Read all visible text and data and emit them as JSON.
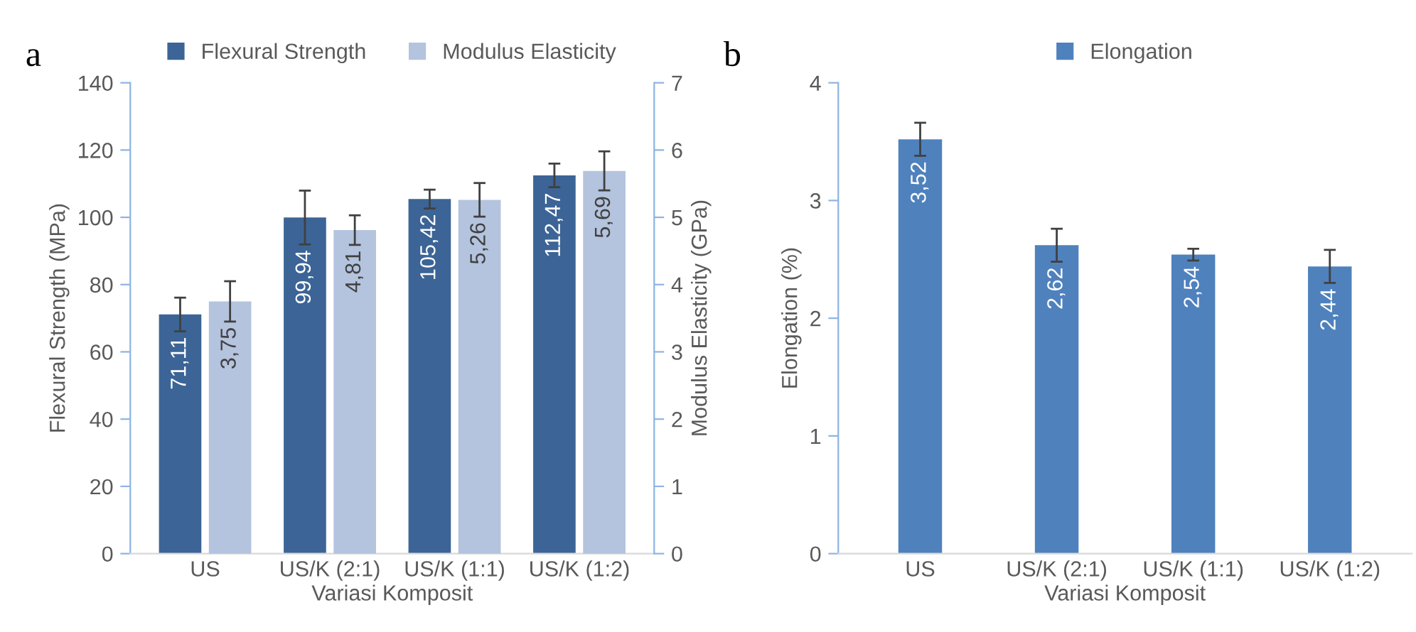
{
  "chart_data": [
    {
      "type": "bar",
      "title": "a",
      "xlabel": "Variasi Komposit",
      "ylabel": "Flexural Strength (MPa)",
      "y2label": "Modulus Elasticity (GPa)",
      "categories": [
        "US",
        "US/K (2:1)",
        "US/K (1:1)",
        "US/K (1:2)"
      ],
      "series": [
        {
          "name": "Flexural Strength",
          "color": "#3c6496",
          "values": [
            71.11,
            99.94,
            105.42,
            112.47
          ],
          "errors": [
            5,
            8,
            2.8,
            3.5
          ],
          "value_labels": [
            "71,11",
            "99,94",
            "105,42",
            "112,47"
          ]
        },
        {
          "name": "Modulus Elasticity",
          "color": "#b4c3de",
          "axis": "y2",
          "values": [
            3.75,
            4.81,
            5.26,
            5.69
          ],
          "errors": [
            0.3,
            0.22,
            0.25,
            0.29
          ],
          "value_labels": [
            "3,75",
            "4,81",
            "5,26",
            "5,69"
          ]
        }
      ],
      "ylim": [
        0,
        140
      ],
      "yticks": [
        0,
        20,
        40,
        60,
        80,
        100,
        120,
        140
      ],
      "y2lim": [
        0,
        7
      ],
      "y2ticks": [
        0,
        1,
        2,
        3,
        4,
        5,
        6,
        7
      ],
      "legend": "top",
      "grid": false
    },
    {
      "type": "bar",
      "title": "b",
      "xlabel": "Variasi Komposit",
      "ylabel": "Elongation (%)",
      "categories": [
        "US",
        "US/K (2:1)",
        "US/K (1:1)",
        "US/K (1:2)"
      ],
      "series": [
        {
          "name": "Elongation",
          "color": "#4f81bd",
          "values": [
            3.52,
            2.62,
            2.54,
            2.44
          ],
          "errors": [
            0.14,
            0.14,
            0.05,
            0.14
          ],
          "value_labels": [
            "3,52",
            "2,62",
            "2,54",
            "2,44"
          ]
        }
      ],
      "ylim": [
        0,
        4
      ],
      "yticks": [
        0,
        1,
        2,
        3,
        4
      ],
      "legend": "top",
      "grid": false
    }
  ]
}
